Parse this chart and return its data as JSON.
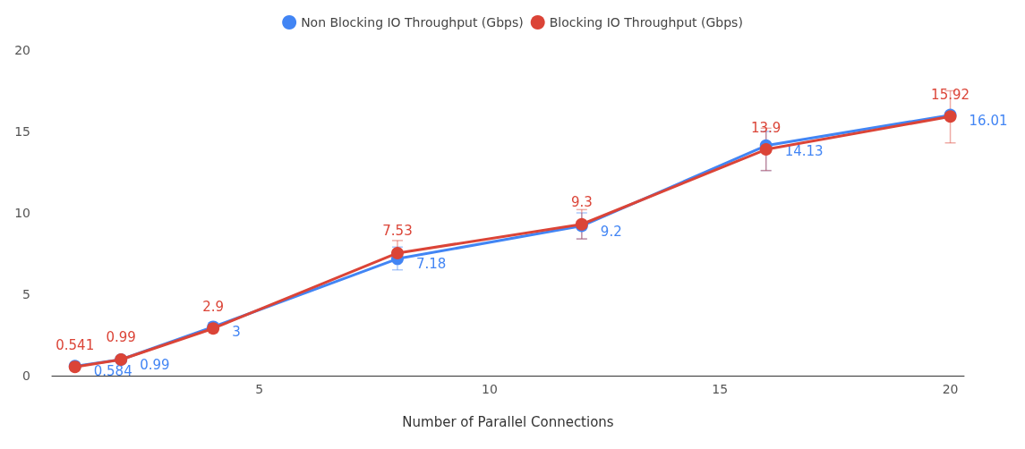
{
  "chart_data": {
    "type": "line",
    "xlabel": "Number of Parallel Connections",
    "x": [
      1,
      2,
      4,
      8,
      12,
      16,
      20
    ],
    "series": [
      {
        "name": "Non Blocking IO Throughput (Gbps)",
        "color": "#4285f4",
        "values": [
          0.584,
          0.99,
          3,
          7.18,
          9.2,
          14.13,
          16.01
        ],
        "errors": [
          null,
          null,
          null,
          [
            6.5,
            7.9
          ],
          [
            8.4,
            10.0
          ],
          [
            12.6,
            15.0
          ],
          null
        ]
      },
      {
        "name": "Blocking IO Throughput (Gbps)",
        "color": "#db4437",
        "values": [
          0.541,
          0.99,
          2.9,
          7.53,
          9.3,
          13.9,
          15.92
        ],
        "errors": [
          null,
          null,
          null,
          [
            7.0,
            8.3
          ],
          [
            8.4,
            10.2
          ],
          [
            12.6,
            15.2
          ],
          [
            14.3,
            17.5
          ]
        ]
      }
    ],
    "xlim": [
      0.5,
      20.3
    ],
    "xticks": [
      5,
      10,
      15,
      20
    ],
    "ylim": [
      0,
      20
    ],
    "yticks": [
      0,
      5,
      10,
      15,
      20
    ],
    "grid": false,
    "legend": "top",
    "marker": "circle",
    "line_style": "solid",
    "data_labels": true
  }
}
